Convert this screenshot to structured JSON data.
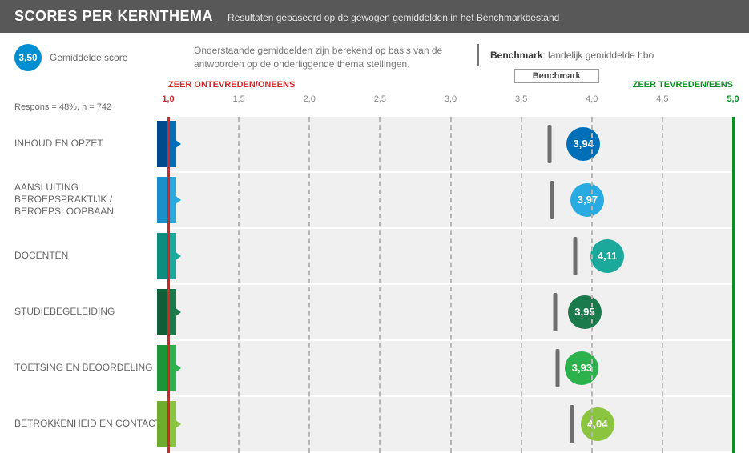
{
  "header": {
    "title": "SCORES PER KERNTHEMA",
    "subtitle": "Resultaten gebaseerd op de gewogen gemiddelden in het Benchmarkbestand"
  },
  "legend": {
    "example_score": "3,50",
    "example_label": "Gemiddelde score",
    "example_color": "#008fd3",
    "mid_text": "Onderstaande gemiddelden zijn berekend op basis van de antwoorden op de onderliggende thema stellingen.",
    "benchmark_label": "Benchmark",
    "benchmark_value": "landelijk gemiddelde hbo"
  },
  "axis": {
    "respons_text": "Respons = 48%, n = 742",
    "left_label": "ZEER ONTEVREDEN/ONEENS",
    "right_label": "ZEER TEVREDEN/EENS",
    "benchmark_box": "Benchmark",
    "min": 1.0,
    "max": 5.0,
    "ticks": [
      {
        "v": 1.0,
        "label": "1,0",
        "cls": "red"
      },
      {
        "v": 1.5,
        "label": "1,5",
        "cls": ""
      },
      {
        "v": 2.0,
        "label": "2,0",
        "cls": ""
      },
      {
        "v": 2.5,
        "label": "2,5",
        "cls": ""
      },
      {
        "v": 3.0,
        "label": "3,0",
        "cls": ""
      },
      {
        "v": 3.5,
        "label": "3,5",
        "cls": ""
      },
      {
        "v": 4.0,
        "label": "4,0",
        "cls": ""
      },
      {
        "v": 4.5,
        "label": "4,5",
        "cls": ""
      },
      {
        "v": 5.0,
        "label": "5,0",
        "cls": "green"
      }
    ],
    "benchmark_indicator_pos": 3.75,
    "grid_color": "#b5b5b5",
    "line_red": "#d22727",
    "line_green": "#0a8f21",
    "row_bg": "#f0f0f0"
  },
  "rows": [
    {
      "label": "INHOUD EN OPZET",
      "score": 3.94,
      "score_text": "3,94",
      "benchmark": 3.7,
      "color": "#006fb8",
      "flag_colors": [
        "#004a8b",
        "#006fb8"
      ]
    },
    {
      "label": "AANSLUITING BEROEPSPRAKTIJK / BEROEPSLOOPBAAN",
      "score": 3.97,
      "score_text": "3,97",
      "benchmark": 3.72,
      "color": "#29abe2",
      "flag_colors": [
        "#1a8fc8",
        "#29abe2"
      ]
    },
    {
      "label": "DOCENTEN",
      "score": 4.11,
      "score_text": "4,11",
      "benchmark": 3.88,
      "color": "#1aa99a",
      "flag_colors": [
        "#0c8d80",
        "#1aa99a"
      ]
    },
    {
      "label": "STUDIEBEGELEIDING",
      "score": 3.95,
      "score_text": "3,95",
      "benchmark": 3.74,
      "color": "#1b7a4c",
      "flag_colors": [
        "#0f5e38",
        "#1b7a4c"
      ]
    },
    {
      "label": "TOETSING EN BEOORDELING",
      "score": 3.93,
      "score_text": "3,93",
      "benchmark": 3.76,
      "color": "#2bb24c",
      "flag_colors": [
        "#1a9636",
        "#2bb24c"
      ]
    },
    {
      "label": "BETROKKENHEID EN CONTACT",
      "score": 4.04,
      "score_text": "4,04",
      "benchmark": 3.86,
      "color": "#8bc53f",
      "flag_colors": [
        "#6fae2c",
        "#8bc53f"
      ]
    }
  ]
}
